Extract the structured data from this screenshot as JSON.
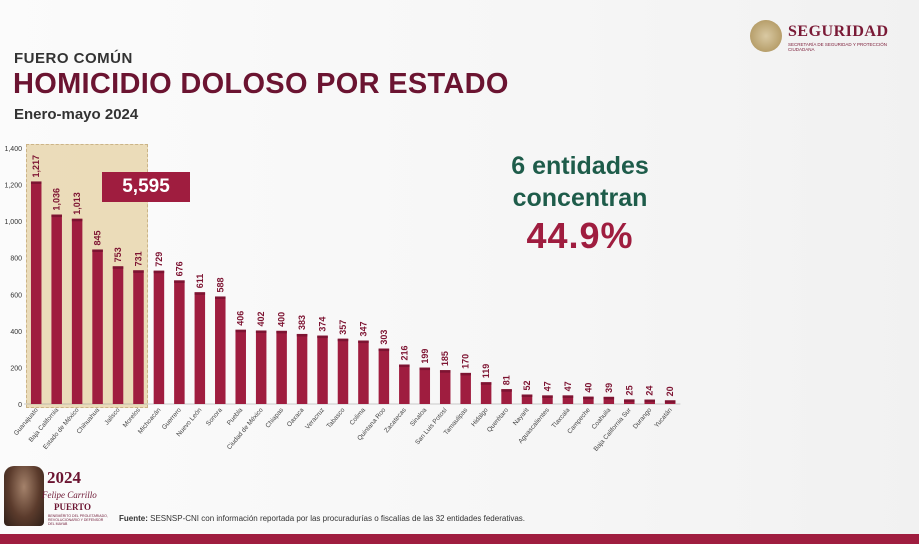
{
  "header": {
    "kicker": "FUERO COMÚN",
    "title": "HOMICIDIO DOLOSO POR ESTADO",
    "subtitle": "Enero-mayo 2024"
  },
  "logo": {
    "name": "SEGURIDAD",
    "subtitle": "SECRETARÍA DE SEGURIDAD Y PROTECCIÓN CIUDADANA",
    "icon": "seal-icon"
  },
  "highlight": {
    "total": "5,595"
  },
  "concentration": {
    "line1": "6 entidades",
    "line2": "concentran",
    "percent": "44.9%"
  },
  "source": {
    "label": "Fuente:",
    "text": "SESNSP-CNI con información reportada por las procuradurías o fiscalías de las 32 entidades federativas."
  },
  "badge": {
    "year": "2024",
    "name_line1": "Felipe Carrillo",
    "name_line2": "PUERTO",
    "small": "BENEMÉRITO DEL PROLETARIADO, REVOLUCIONARIO Y DEFENSOR DEL MAYAB"
  },
  "colors": {
    "bar": "#9f1d3f",
    "title": "#6b1431",
    "accent_green": "#1e5c4a",
    "highlight_bg": "#ead9b3"
  },
  "chart_data": {
    "type": "bar",
    "title": "HOMICIDIO DOLOSO POR ESTADO",
    "xlabel": "",
    "ylabel": "",
    "ylim": [
      0,
      1400
    ],
    "yticks": [
      0,
      200,
      400,
      600,
      800,
      1000,
      1200,
      1400
    ],
    "ytick_labels": [
      "0",
      "200",
      "400",
      "600",
      "800",
      "1,000",
      "1,200",
      "1,400"
    ],
    "grid": false,
    "categories": [
      "Guanajuato",
      "Baja California",
      "Estado de México",
      "Chihuahua",
      "Jalisco",
      "Morelos",
      "Michoacán",
      "Guerrero",
      "Nuevo León",
      "Sonora",
      "Puebla",
      "Ciudad de México",
      "Chiapas",
      "Oaxaca",
      "Veracruz",
      "Tabasco",
      "Colima",
      "Quintana Roo",
      "Zacatecas",
      "Sinaloa",
      "San Luis Potosí",
      "Tamaulipas",
      "Hidalgo",
      "Querétaro",
      "Nayarit",
      "Aguascalientes",
      "Tlaxcala",
      "Campeche",
      "Coahuila",
      "Baja California Sur",
      "Durango",
      "Yucatán"
    ],
    "values": [
      1217,
      1036,
      1013,
      845,
      753,
      731,
      729,
      676,
      611,
      588,
      406,
      402,
      400,
      383,
      374,
      357,
      347,
      303,
      216,
      199,
      185,
      170,
      119,
      81,
      52,
      47,
      47,
      40,
      39,
      25,
      24,
      20
    ],
    "value_labels": [
      "1,217",
      "1,036",
      "1,013",
      "845",
      "753",
      "731",
      "729",
      "676",
      "611",
      "588",
      "406",
      "402",
      "400",
      "383",
      "374",
      "357",
      "347",
      "303",
      "216",
      "199",
      "185",
      "170",
      "119",
      "81",
      "52",
      "47",
      "47",
      "40",
      "39",
      "25",
      "24",
      "20"
    ],
    "highlighted_count": 6,
    "highlighted_total": "5,595"
  }
}
